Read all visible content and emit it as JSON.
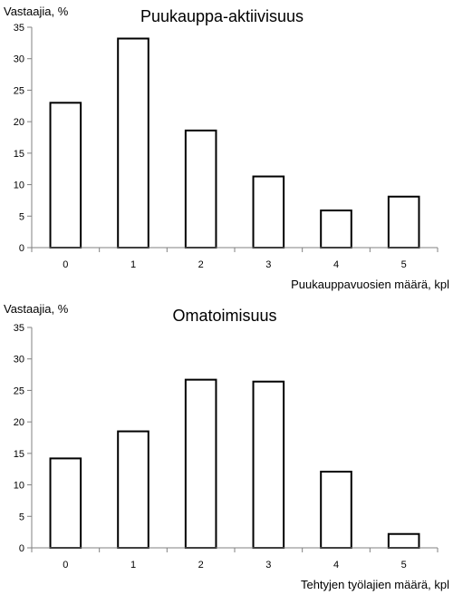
{
  "chart_data": [
    {
      "type": "bar",
      "title": "Puukauppa-aktiivisuus",
      "ylabel": "Vastaajia, %",
      "xlabel": "Puukauppavuosien määrä, kpl",
      "categories": [
        "0",
        "1",
        "2",
        "3",
        "4",
        "5"
      ],
      "values": [
        23,
        33.2,
        18.6,
        11.3,
        5.9,
        8.1
      ],
      "ylim": [
        0,
        35
      ],
      "yticks": [
        "0",
        "5",
        "10",
        "15",
        "20",
        "25",
        "30",
        "35"
      ],
      "grid": false,
      "legend": "none"
    },
    {
      "type": "bar",
      "title": "Omatoimisuus",
      "ylabel": "Vastaajia, %",
      "xlabel": "Tehtyjen työlajien määrä, kpl",
      "categories": [
        "0",
        "1",
        "2",
        "3",
        "4",
        "5"
      ],
      "values": [
        14.2,
        18.5,
        26.7,
        26.4,
        12.1,
        2.2
      ],
      "ylim": [
        0,
        35
      ],
      "yticks": [
        "0",
        "5",
        "10",
        "15",
        "20",
        "25",
        "30",
        "35"
      ],
      "grid": false,
      "legend": "none"
    }
  ]
}
